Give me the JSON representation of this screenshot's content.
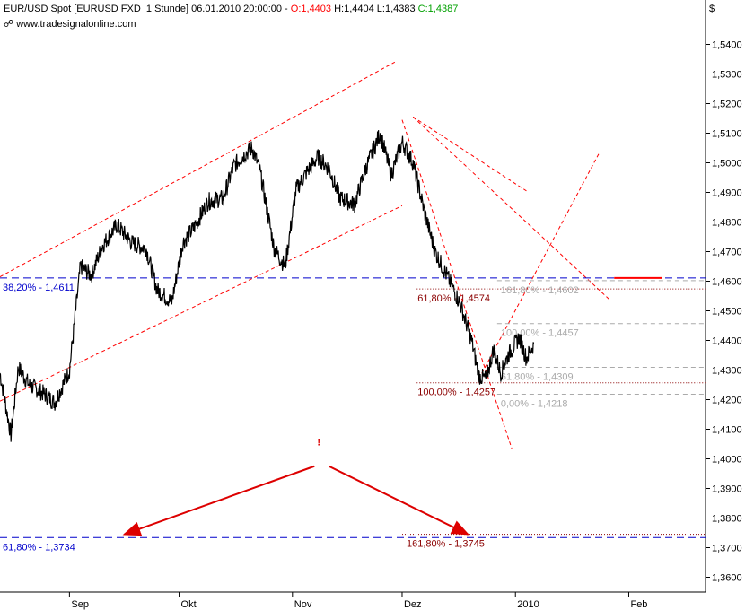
{
  "header": {
    "title_prefix": "EUR/USD Spot [EURUSD FXD  1 Stunde] 06.01.2010 20:00:00 - ",
    "open": "O:1,4403",
    "high": " H:1,4404",
    "low": " L:1,4383",
    "close": " C:1,4387",
    "source": "www.tradesignalonline.com",
    "unit": "$"
  },
  "colors": {
    "price": "#000000",
    "open": "#ff0000",
    "close": "#00a000",
    "trend": "#ff0000",
    "level": "#0000cc",
    "fib_label": "#8b0000",
    "fib_grey": "#aaaaaa",
    "arrow": "#dd0000"
  },
  "chart_data": {
    "type": "line",
    "title": "EUR/USD Spot [EURUSD FXD  1 Stunde]",
    "ylabel": "$",
    "ylim": [
      1.355,
      1.555
    ],
    "yticks": [
      "1,3600",
      "1,3700",
      "1,3800",
      "1,3900",
      "1,4000",
      "1,4100",
      "1,4200",
      "1,4300",
      "1,4400",
      "1,4500",
      "1,4600",
      "1,4700",
      "1,4800",
      "1,4900",
      "1,5000",
      "1,5100",
      "1,5200",
      "1,5300",
      "1,5400"
    ],
    "xticks": [
      "Sep",
      "Okt",
      "Nov",
      "Dez",
      "2010",
      "Feb"
    ],
    "xtick_dates": [
      "2009-09-01",
      "2009-10-01",
      "2009-11-01",
      "2009-12-01",
      "2010-01-01",
      "2010-02-01"
    ],
    "xlim": [
      "2009-08-13",
      "2010-02-22"
    ],
    "series": [
      {
        "x": [
          "2009-08-13",
          "2009-08-16",
          "2009-08-18",
          "2009-08-21",
          "2009-08-25",
          "2009-08-28",
          "2009-09-01",
          "2009-09-04",
          "2009-09-07",
          "2009-09-10",
          "2009-09-14",
          "2009-09-18",
          "2009-09-22",
          "2009-09-25",
          "2009-09-29",
          "2009-10-02",
          "2009-10-05",
          "2009-10-09",
          "2009-10-13",
          "2009-10-16",
          "2009-10-19",
          "2009-10-21",
          "2009-10-23",
          "2009-10-27",
          "2009-10-30",
          "2009-11-02",
          "2009-11-05",
          "2009-11-08",
          "2009-11-11",
          "2009-11-14",
          "2009-11-18",
          "2009-11-21",
          "2009-11-25",
          "2009-11-28",
          "2009-12-01",
          "2009-12-04",
          "2009-12-07",
          "2009-12-10",
          "2009-12-14",
          "2009-12-17",
          "2009-12-20",
          "2009-12-22",
          "2009-12-24",
          "2009-12-26",
          "2009-12-28",
          "2009-12-30",
          "2010-01-02",
          "2010-01-04",
          "2010-01-06"
        ],
        "values": [
          1.429,
          1.408,
          1.431,
          1.425,
          1.422,
          1.419,
          1.43,
          1.465,
          1.462,
          1.472,
          1.479,
          1.473,
          1.471,
          1.457,
          1.453,
          1.473,
          1.478,
          1.487,
          1.488,
          1.499,
          1.503,
          1.505,
          1.498,
          1.471,
          1.465,
          1.491,
          1.497,
          1.502,
          1.498,
          1.488,
          1.486,
          1.498,
          1.51,
          1.496,
          1.507,
          1.5,
          1.484,
          1.47,
          1.46,
          1.452,
          1.44,
          1.428,
          1.427,
          1.437,
          1.429,
          1.435,
          1.441,
          1.434,
          1.4387
        ]
      }
    ],
    "channel": {
      "upper": [
        [
          "2009-08-13",
          1.4615
        ],
        [
          "2009-11-29",
          1.534
        ]
      ],
      "lower": [
        [
          "2009-08-13",
          1.4195
        ],
        [
          "2009-12-01",
          1.4855
        ]
      ]
    },
    "decline_lines": [
      [
        [
          "2009-12-04",
          1.5155
        ],
        [
          "2010-01-04",
          1.4905
        ]
      ],
      [
        [
          "2009-12-04",
          1.5155
        ],
        [
          "2010-01-27",
          1.4535
        ]
      ],
      [
        [
          "2009-12-01",
          1.5145
        ],
        [
          "2009-12-31",
          1.4035
        ]
      ]
    ],
    "rebound_line": [
      [
        "2009-12-22",
        1.427
      ],
      [
        "2010-01-24",
        1.5035
      ]
    ],
    "levels": [
      {
        "label": "38,20% - 1,4611",
        "value": 1.4611,
        "style": "blue"
      },
      {
        "label": "61,80% - 1,3734",
        "value": 1.3734,
        "style": "blue"
      },
      {
        "label": "61,80% - 1,4574",
        "value": 1.4574,
        "style": "fib"
      },
      {
        "label": "100,00% - 1,4257",
        "value": 1.4257,
        "style": "fib"
      },
      {
        "label": "161,80% - 1,3745",
        "value": 1.3745,
        "style": "fib"
      },
      {
        "label": "161,80% - 1,4602",
        "value": 1.4602,
        "style": "grey"
      },
      {
        "label": "100,00% - 1,4457",
        "value": 1.4457,
        "style": "grey"
      },
      {
        "label": "61,80% - 1,4309",
        "value": 1.4309,
        "style": "grey"
      },
      {
        "label": "0,00% - 1,4218",
        "value": 1.4218,
        "style": "grey"
      }
    ],
    "marker_line": [
      [
        "2010-01-28",
        1.4611
      ],
      [
        "2010-02-10",
        1.4611
      ]
    ],
    "annotations": {
      "exclamation": "!",
      "arrows": [
        {
          "from": [
            "2009-11-07",
            1.3975
          ],
          "to": [
            "2009-09-16",
            1.3745
          ]
        },
        {
          "from": [
            "2009-11-11",
            1.3975
          ],
          "to": [
            "2009-12-19",
            1.3745
          ]
        }
      ]
    }
  }
}
